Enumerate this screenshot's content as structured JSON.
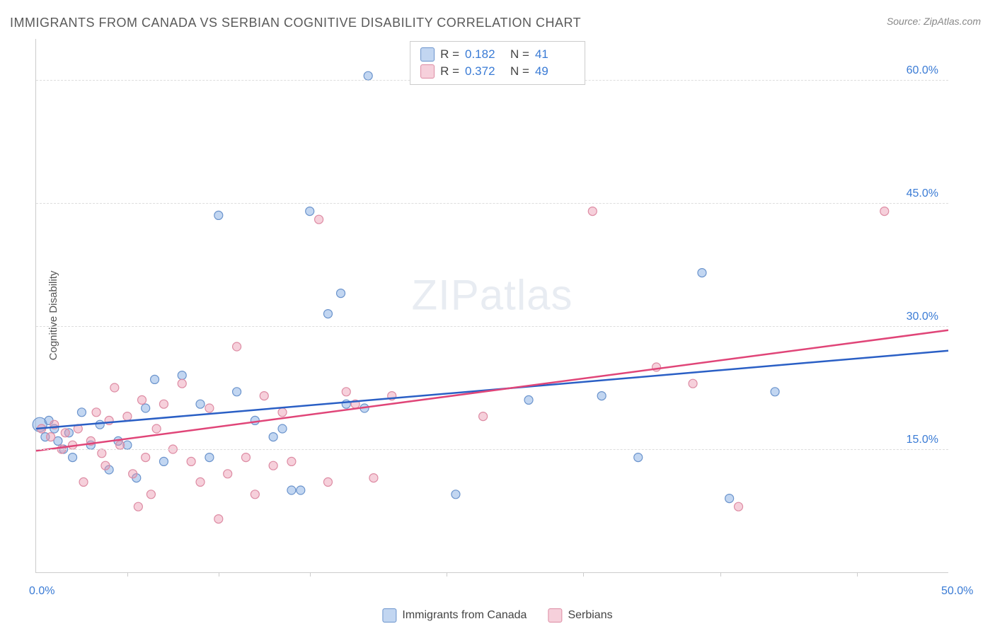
{
  "title": "IMMIGRANTS FROM CANADA VS SERBIAN COGNITIVE DISABILITY CORRELATION CHART",
  "source": "Source: ZipAtlas.com",
  "y_axis_label": "Cognitive Disability",
  "watermark": {
    "part1": "ZIP",
    "part2": "atlas"
  },
  "chart": {
    "type": "scatter",
    "background_color": "#ffffff",
    "grid_color": "#dddddd",
    "axis_color": "#cccccc",
    "text_color": "#555555",
    "value_color": "#3a7bd5",
    "xlim": [
      0,
      50
    ],
    "ylim": [
      0,
      65
    ],
    "y_ticks": [
      {
        "value": 15.0,
        "label": "15.0%"
      },
      {
        "value": 30.0,
        "label": "30.0%"
      },
      {
        "value": 45.0,
        "label": "45.0%"
      },
      {
        "value": 60.0,
        "label": "60.0%"
      }
    ],
    "x_ticks_major": [
      0.0,
      50.0
    ],
    "x_tick_labels": [
      {
        "value": 0.0,
        "label": "0.0%"
      },
      {
        "value": 50.0,
        "label": "50.0%"
      }
    ],
    "x_ticks_minor": [
      5,
      10,
      15,
      22.5,
      30,
      37.5,
      45
    ],
    "series": [
      {
        "name": "Immigrants from Canada",
        "fill_color": "rgba(120, 165, 225, 0.45)",
        "stroke_color": "#6a93cc",
        "line_color": "#2a5fc5",
        "trend": {
          "x1": 0,
          "y1": 17.5,
          "x2": 50,
          "y2": 27.0
        },
        "stats": {
          "R": "0.182",
          "N": "41"
        },
        "points": [
          [
            0.2,
            18.0,
            10
          ],
          [
            0.5,
            16.5,
            6
          ],
          [
            0.7,
            18.5,
            6
          ],
          [
            1.0,
            17.5,
            6
          ],
          [
            1.2,
            16.0,
            6
          ],
          [
            1.5,
            15.0,
            6
          ],
          [
            1.8,
            17.0,
            6
          ],
          [
            2.0,
            14.0,
            6
          ],
          [
            2.5,
            19.5,
            6
          ],
          [
            3.0,
            15.5,
            6
          ],
          [
            3.5,
            18.0,
            6
          ],
          [
            4.0,
            12.5,
            6
          ],
          [
            4.5,
            16.0,
            6
          ],
          [
            5.0,
            15.5,
            6
          ],
          [
            5.5,
            11.5,
            6
          ],
          [
            6.0,
            20.0,
            6
          ],
          [
            6.5,
            23.5,
            6
          ],
          [
            7.0,
            13.5,
            6
          ],
          [
            8.0,
            24.0,
            6
          ],
          [
            9.0,
            20.5,
            6
          ],
          [
            9.5,
            14.0,
            6
          ],
          [
            10.0,
            43.5,
            6
          ],
          [
            11.0,
            22.0,
            6
          ],
          [
            12.0,
            18.5,
            6
          ],
          [
            13.0,
            16.5,
            6
          ],
          [
            13.5,
            17.5,
            6
          ],
          [
            14.0,
            10.0,
            6
          ],
          [
            14.5,
            10.0,
            6
          ],
          [
            15.0,
            44.0,
            6
          ],
          [
            16.0,
            31.5,
            6
          ],
          [
            16.7,
            34.0,
            6
          ],
          [
            17.0,
            20.5,
            6
          ],
          [
            18.0,
            20.0,
            6
          ],
          [
            18.2,
            60.5,
            6
          ],
          [
            23.0,
            9.5,
            6
          ],
          [
            27.0,
            21.0,
            6
          ],
          [
            31.0,
            21.5,
            6
          ],
          [
            33.0,
            14.0,
            6
          ],
          [
            36.5,
            36.5,
            6
          ],
          [
            38.0,
            9.0,
            6
          ],
          [
            40.5,
            22.0,
            6
          ]
        ]
      },
      {
        "name": "Serbians",
        "fill_color": "rgba(235, 150, 175, 0.45)",
        "stroke_color": "#dd8ba3",
        "line_color": "#e04578",
        "trend": {
          "x1": 0,
          "y1": 14.8,
          "x2": 50,
          "y2": 29.5
        },
        "stats": {
          "R": "0.372",
          "N": "49"
        },
        "points": [
          [
            0.3,
            17.5,
            6
          ],
          [
            0.8,
            16.5,
            6
          ],
          [
            1.0,
            18.0,
            6
          ],
          [
            1.4,
            15.0,
            6
          ],
          [
            1.6,
            17.0,
            6
          ],
          [
            2.0,
            15.5,
            6
          ],
          [
            2.3,
            17.5,
            6
          ],
          [
            2.6,
            11.0,
            6
          ],
          [
            3.0,
            16.0,
            6
          ],
          [
            3.3,
            19.5,
            6
          ],
          [
            3.6,
            14.5,
            6
          ],
          [
            4.0,
            18.5,
            6
          ],
          [
            4.3,
            22.5,
            6
          ],
          [
            4.6,
            15.5,
            6
          ],
          [
            5.0,
            19.0,
            6
          ],
          [
            5.3,
            12.0,
            6
          ],
          [
            5.6,
            8.0,
            6
          ],
          [
            6.0,
            14.0,
            6
          ],
          [
            6.3,
            9.5,
            6
          ],
          [
            6.6,
            17.5,
            6
          ],
          [
            7.0,
            20.5,
            6
          ],
          [
            7.5,
            15.0,
            6
          ],
          [
            8.0,
            23.0,
            6
          ],
          [
            8.5,
            13.5,
            6
          ],
          [
            9.0,
            11.0,
            6
          ],
          [
            9.5,
            20.0,
            6
          ],
          [
            10.0,
            6.5,
            6
          ],
          [
            10.5,
            12.0,
            6
          ],
          [
            11.0,
            27.5,
            6
          ],
          [
            11.5,
            14.0,
            6
          ],
          [
            12.0,
            9.5,
            6
          ],
          [
            12.5,
            21.5,
            6
          ],
          [
            13.0,
            13.0,
            6
          ],
          [
            13.5,
            19.5,
            6
          ],
          [
            14.0,
            13.5,
            6
          ],
          [
            15.5,
            43.0,
            6
          ],
          [
            16.0,
            11.0,
            6
          ],
          [
            17.0,
            22.0,
            6
          ],
          [
            17.5,
            20.5,
            6
          ],
          [
            18.5,
            11.5,
            6
          ],
          [
            19.5,
            21.5,
            6
          ],
          [
            24.5,
            19.0,
            6
          ],
          [
            30.5,
            44.0,
            6
          ],
          [
            34.0,
            25.0,
            6
          ],
          [
            36.0,
            23.0,
            6
          ],
          [
            38.5,
            8.0,
            6
          ],
          [
            46.5,
            44.0,
            6
          ],
          [
            5.8,
            21.0,
            6
          ],
          [
            3.8,
            13.0,
            6
          ]
        ]
      }
    ]
  },
  "legend_top_label_R": "R  =",
  "legend_top_label_N": "N  =",
  "marker_radius_default": 6,
  "line_width": 2.5,
  "title_fontsize": 18,
  "label_fontsize": 15,
  "tick_fontsize": 16
}
